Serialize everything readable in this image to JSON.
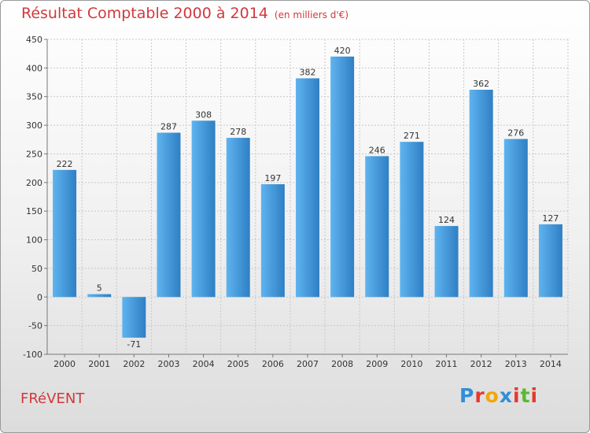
{
  "title": "Résultat Comptable 2000 à 2014",
  "unit_note": "(en milliers d'€)",
  "commune": "FRéVENT",
  "logo": {
    "text": "Proxiti",
    "letters": [
      {
        "char": "P",
        "color": "#2f8fd8"
      },
      {
        "char": "r",
        "color": "#e33b2c"
      },
      {
        "char": "o",
        "color": "#f2a60a"
      },
      {
        "char": "x",
        "color": "#2f8fd8"
      },
      {
        "char": "i",
        "color": "#e33b2c"
      },
      {
        "char": "t",
        "color": "#5db82f"
      },
      {
        "char": "i",
        "color": "#e33b2c"
      }
    ]
  },
  "colors": {
    "accent": "#d0393d",
    "bar_light": "#5eb4ef",
    "bar_dark": "#2f7fc4"
  },
  "chart_data": {
    "type": "bar",
    "categories": [
      "2000",
      "2001",
      "2002",
      "2003",
      "2004",
      "2005",
      "2006",
      "2007",
      "2008",
      "2009",
      "2010",
      "2011",
      "2012",
      "2013",
      "2014"
    ],
    "values": [
      222,
      5,
      -71,
      287,
      308,
      278,
      197,
      382,
      420,
      246,
      271,
      124,
      362,
      276,
      127
    ],
    "ylim": [
      -100,
      450
    ],
    "yticks": [
      -100,
      -50,
      0,
      50,
      100,
      150,
      200,
      250,
      300,
      350,
      400,
      450
    ],
    "grid": true
  }
}
